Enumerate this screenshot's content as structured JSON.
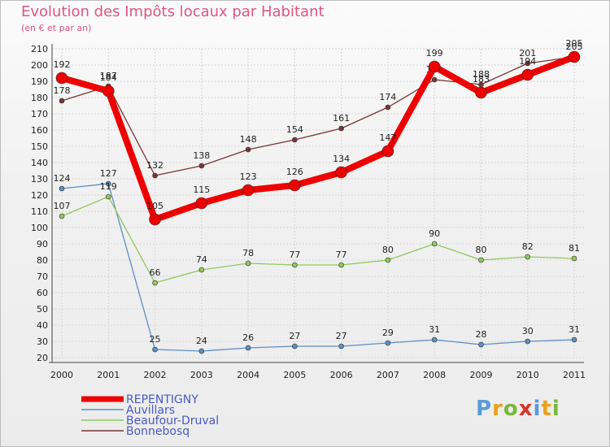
{
  "header": {
    "title": "Evolution des Impôts locaux par Habitant",
    "subtitle": "(en € et par an)"
  },
  "logo": {
    "letters": [
      "P",
      "r",
      "o",
      "x",
      "i",
      "t",
      "i"
    ],
    "colors": [
      "#5a9bd8",
      "#e8a21a",
      "#7ab83a",
      "#d9342b",
      "#5a9bd8",
      "#e8a21a",
      "#7ab83a"
    ]
  },
  "chart_data": {
    "type": "line",
    "title": "Evolution des Impôts locaux par Habitant",
    "subtitle": "(en € et par an)",
    "xlabel": "",
    "ylabel": "",
    "ylim": [
      20,
      210
    ],
    "yticks": [
      20,
      30,
      40,
      50,
      60,
      70,
      80,
      90,
      100,
      110,
      120,
      130,
      140,
      150,
      160,
      170,
      180,
      190,
      200,
      210
    ],
    "grid": true,
    "legend": "bottom-left",
    "x": [
      "2000",
      "2001",
      "2002",
      "2003",
      "2004",
      "2005",
      "2006",
      "2007",
      "2008",
      "2009",
      "2010",
      "2011"
    ],
    "series": [
      {
        "name": "Bonnebosq",
        "color": "#7a3434",
        "values": [
          178,
          187,
          132,
          138,
          148,
          154,
          161,
          174,
          191,
          188,
          201,
          205
        ]
      },
      {
        "name": "Auvillars",
        "color": "#5b8fc4",
        "values": [
          124,
          127,
          25,
          24,
          26,
          27,
          27,
          29,
          31,
          28,
          30,
          31
        ]
      },
      {
        "name": "Beaufour-Druval",
        "color": "#8ec95a",
        "values": [
          107,
          119,
          66,
          74,
          78,
          77,
          77,
          80,
          90,
          80,
          82,
          81
        ]
      },
      {
        "name": "REPENTIGNY",
        "color": "#ee0000",
        "values": [
          192,
          184,
          105,
          115,
          123,
          126,
          134,
          147,
          199,
          183,
          194,
          205
        ]
      }
    ],
    "legend_order": [
      "REPENTIGNY",
      "Auvillars",
      "Beaufour-Druval",
      "Bonnebosq"
    ]
  }
}
